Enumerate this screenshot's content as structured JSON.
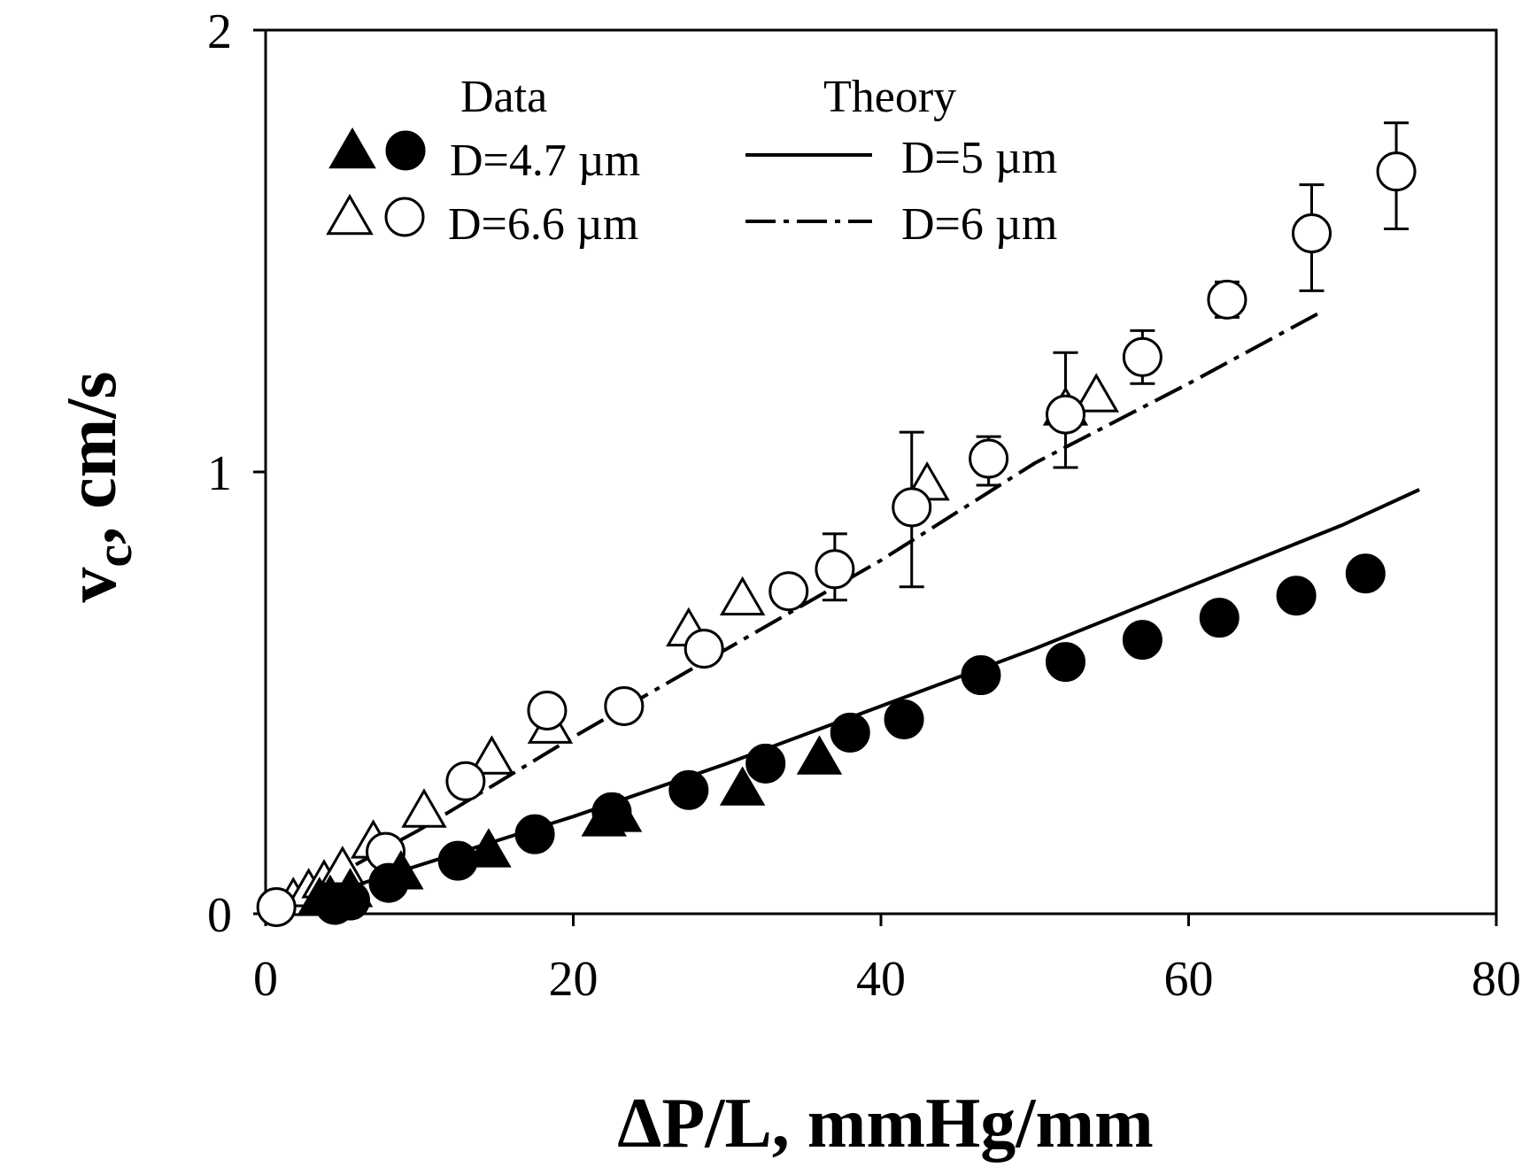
{
  "chart_data": {
    "type": "scatter",
    "xlabel": "ΔP/L, mmHg/mm",
    "ylabel_main": "v",
    "ylabel_sub": "c",
    "ylabel_rest": ", cm/s",
    "xlim": [
      0,
      80
    ],
    "ylim": [
      0,
      2
    ],
    "xticks": [
      0,
      20,
      40,
      60,
      80
    ],
    "yticks": [
      0,
      1,
      2
    ],
    "grid": false,
    "legend": {
      "placement": "top-left",
      "data_header": "Data",
      "theory_header": "Theory",
      "data_entries": [
        {
          "label": "D=4.7 µm",
          "series": [
            "d47_triangles",
            "d47_circles"
          ]
        },
        {
          "label": "D=6.6 µm",
          "series": [
            "d66_triangles",
            "d66_circles"
          ]
        }
      ],
      "theory_entries": [
        {
          "label": "D=5 µm",
          "series": "theory_d5"
        },
        {
          "label": "D=6 µm",
          "series": "theory_d6"
        }
      ]
    },
    "series": [
      {
        "id": "d47_triangles",
        "marker": "triangle",
        "fill": "#000000",
        "points": [
          [
            3.5,
            0.03
          ],
          [
            4.2,
            0.035
          ],
          [
            5.5,
            0.05
          ],
          [
            8.8,
            0.09
          ],
          [
            14.5,
            0.14
          ],
          [
            22,
            0.21
          ],
          [
            23,
            0.22
          ],
          [
            31,
            0.28
          ],
          [
            36,
            0.35
          ]
        ]
      },
      {
        "id": "d47_circles",
        "marker": "circle",
        "fill": "#000000",
        "points": [
          [
            4.5,
            0.02
          ],
          [
            5.5,
            0.03
          ],
          [
            8,
            0.07
          ],
          [
            12.5,
            0.12
          ],
          [
            17.5,
            0.18
          ],
          [
            22.5,
            0.23
          ],
          [
            27.5,
            0.28
          ],
          [
            32.5,
            0.34
          ],
          [
            38,
            0.41
          ],
          [
            41.5,
            0.44
          ],
          [
            46.5,
            0.54
          ],
          [
            52,
            0.57
          ],
          [
            57,
            0.62
          ],
          [
            62,
            0.67
          ],
          [
            67,
            0.72
          ],
          [
            71.5,
            0.77
          ]
        ]
      },
      {
        "id": "d66_triangles",
        "marker": "triangle",
        "fill": "#ffffff",
        "points": [
          [
            1.8,
            0.03
          ],
          [
            2.8,
            0.05
          ],
          [
            3.8,
            0.07
          ],
          [
            5,
            0.1
          ],
          [
            7,
            0.16
          ],
          [
            10.3,
            0.23
          ],
          [
            14.7,
            0.35
          ],
          [
            18.5,
            0.42
          ],
          [
            27.5,
            0.64
          ],
          [
            31,
            0.71
          ],
          [
            43,
            0.97
          ],
          [
            52,
            1.14
          ],
          [
            54,
            1.17
          ]
        ]
      },
      {
        "id": "d66_circles",
        "marker": "circle",
        "fill": "#ffffff",
        "points": [
          [
            0.7,
            0.015
          ],
          [
            7.8,
            0.14
          ],
          [
            13,
            0.3
          ],
          [
            18.3,
            0.46
          ],
          [
            23.3,
            0.47
          ],
          [
            28.5,
            0.6
          ],
          [
            34,
            0.73
          ],
          [
            37,
            0.78
          ],
          [
            42,
            0.92
          ],
          [
            47,
            1.03
          ],
          [
            52,
            1.13
          ],
          [
            57,
            1.26
          ],
          [
            62.5,
            1.39
          ],
          [
            68,
            1.54
          ],
          [
            73.5,
            1.68
          ]
        ],
        "error_bars": [
          {
            "x": 37,
            "low": 0.71,
            "high": 0.86
          },
          {
            "x": 42,
            "low": 0.74,
            "high": 1.09
          },
          {
            "x": 47,
            "low": 0.97,
            "high": 1.08
          },
          {
            "x": 52,
            "low": 1.01,
            "high": 1.27
          },
          {
            "x": 57,
            "low": 1.2,
            "high": 1.32
          },
          {
            "x": 62.5,
            "low": 1.35,
            "high": 1.43
          },
          {
            "x": 68,
            "low": 1.41,
            "high": 1.65
          },
          {
            "x": 73.5,
            "low": 1.55,
            "high": 1.79
          }
        ]
      },
      {
        "id": "theory_d5",
        "marker": "line",
        "dash": "solid",
        "points": [
          [
            0,
            0
          ],
          [
            10,
            0.11
          ],
          [
            20,
            0.22
          ],
          [
            30,
            0.34
          ],
          [
            40,
            0.47
          ],
          [
            50,
            0.6
          ],
          [
            60,
            0.74
          ],
          [
            70,
            0.88
          ],
          [
            75,
            0.96
          ]
        ]
      },
      {
        "id": "theory_d6",
        "marker": "line",
        "dash": "dashdot",
        "points": [
          [
            0,
            0
          ],
          [
            10,
            0.19
          ],
          [
            20,
            0.4
          ],
          [
            30,
            0.6
          ],
          [
            40,
            0.8
          ],
          [
            50,
            1.02
          ],
          [
            60,
            1.2
          ],
          [
            68.5,
            1.36
          ]
        ]
      }
    ]
  }
}
